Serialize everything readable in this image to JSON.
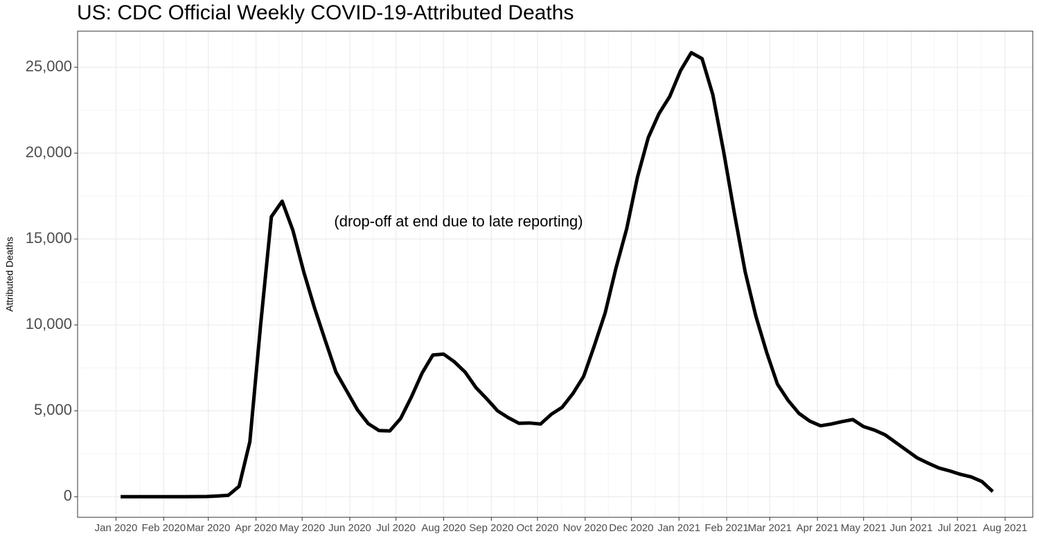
{
  "chart_data": {
    "type": "line",
    "title": "US: CDC Official Weekly COVID-19-Attributed Deaths",
    "y_label": "Attributed Deaths",
    "annotation": "(drop-off at end due to late reporting)",
    "grid": true,
    "x": [
      "2020-01-04",
      "2020-01-11",
      "2020-01-18",
      "2020-01-25",
      "2020-02-01",
      "2020-02-08",
      "2020-02-15",
      "2020-02-22",
      "2020-02-29",
      "2020-03-07",
      "2020-03-14",
      "2020-03-21",
      "2020-03-28",
      "2020-04-04",
      "2020-04-11",
      "2020-04-18",
      "2020-04-25",
      "2020-05-02",
      "2020-05-09",
      "2020-05-16",
      "2020-05-23",
      "2020-05-30",
      "2020-06-06",
      "2020-06-13",
      "2020-06-20",
      "2020-06-27",
      "2020-07-04",
      "2020-07-11",
      "2020-07-18",
      "2020-07-25",
      "2020-08-01",
      "2020-08-08",
      "2020-08-15",
      "2020-08-22",
      "2020-08-29",
      "2020-09-05",
      "2020-09-12",
      "2020-09-19",
      "2020-09-26",
      "2020-10-03",
      "2020-10-10",
      "2020-10-17",
      "2020-10-24",
      "2020-10-31",
      "2020-11-07",
      "2020-11-14",
      "2020-11-21",
      "2020-11-28",
      "2020-12-05",
      "2020-12-12",
      "2020-12-19",
      "2020-12-26",
      "2021-01-02",
      "2021-01-09",
      "2021-01-16",
      "2021-01-23",
      "2021-01-30",
      "2021-02-06",
      "2021-02-13",
      "2021-02-20",
      "2021-02-27",
      "2021-03-06",
      "2021-03-13",
      "2021-03-20",
      "2021-03-27",
      "2021-04-03",
      "2021-04-10",
      "2021-04-17",
      "2021-04-24",
      "2021-05-01",
      "2021-05-08",
      "2021-05-15",
      "2021-05-22",
      "2021-05-29",
      "2021-06-05",
      "2021-06-12",
      "2021-06-19",
      "2021-06-26",
      "2021-07-03",
      "2021-07-10",
      "2021-07-17",
      "2021-07-24"
    ],
    "series": [
      {
        "name": "Attributed Deaths",
        "color": "#000000",
        "values": [
          0,
          0,
          0,
          0,
          0,
          0,
          0,
          5,
          10,
          40,
          80,
          600,
          3200,
          10000,
          16300,
          17200,
          15500,
          13100,
          11000,
          9100,
          7250,
          6150,
          5050,
          4250,
          3850,
          3830,
          4550,
          5800,
          7200,
          8250,
          8300,
          7850,
          7250,
          6350,
          5700,
          5000,
          4600,
          4270,
          4290,
          4230,
          4800,
          5200,
          6000,
          7000,
          8800,
          10700,
          13300,
          15600,
          18600,
          20900,
          22300,
          23300,
          24800,
          25850,
          25500,
          23400,
          20100,
          16500,
          13100,
          10500,
          8400,
          6550,
          5600,
          4850,
          4400,
          4130,
          4230,
          4370,
          4490,
          4080,
          3880,
          3600,
          3150,
          2700,
          2250,
          1950,
          1670,
          1500,
          1300,
          1150,
          880,
          300
        ]
      }
    ],
    "xlim": [
      "2019-12-07",
      "2021-08-19"
    ],
    "xticks": [
      {
        "value": "2020-01-01",
        "label": "Jan 2020"
      },
      {
        "value": "2020-02-01",
        "label": "Feb 2020"
      },
      {
        "value": "2020-03-01",
        "label": "Mar 2020"
      },
      {
        "value": "2020-04-01",
        "label": "Apr 2020"
      },
      {
        "value": "2020-05-01",
        "label": "May 2020"
      },
      {
        "value": "2020-06-01",
        "label": "Jun 2020"
      },
      {
        "value": "2020-07-01",
        "label": "Jul 2020"
      },
      {
        "value": "2020-08-01",
        "label": "Aug 2020"
      },
      {
        "value": "2020-09-01",
        "label": "Sep 2020"
      },
      {
        "value": "2020-10-01",
        "label": "Oct 2020"
      },
      {
        "value": "2020-11-01",
        "label": "Nov 2020"
      },
      {
        "value": "2020-12-01",
        "label": "Dec 2020"
      },
      {
        "value": "2021-01-01",
        "label": "Jan 2021"
      },
      {
        "value": "2021-02-01",
        "label": "Feb 2021"
      },
      {
        "value": "2021-03-01",
        "label": "Mar 2021"
      },
      {
        "value": "2021-04-01",
        "label": "Apr 2021"
      },
      {
        "value": "2021-05-01",
        "label": "May 2021"
      },
      {
        "value": "2021-06-01",
        "label": "Jun 2021"
      },
      {
        "value": "2021-07-01",
        "label": "Jul 2021"
      },
      {
        "value": "2021-08-01",
        "label": "Aug 2021"
      }
    ],
    "ylim": [
      -1200,
      27100
    ],
    "yticks": [
      0,
      {
        "value": 5000,
        "label": "5,000"
      },
      {
        "value": 10000,
        "label": "10,000"
      },
      {
        "value": 15000,
        "label": "15,000"
      },
      {
        "value": 20000,
        "label": "20,000"
      },
      {
        "value": 25000,
        "label": "25,000"
      }
    ]
  }
}
